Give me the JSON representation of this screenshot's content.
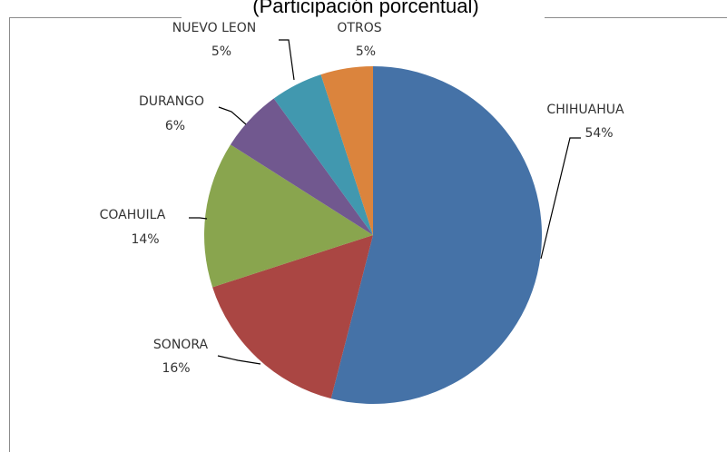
{
  "chart_data": {
    "type": "pie",
    "subtitle": "(Participación porcentual)",
    "categories": [
      "CHIHUAHUA",
      "SONORA",
      "COAHUILA",
      "DURANGO",
      "NUEVO LEON",
      "OTROS"
    ],
    "values": [
      54,
      16,
      14,
      6,
      5,
      5
    ],
    "value_labels": [
      "54%",
      "16%",
      "14%",
      "6%",
      "5%",
      "5%"
    ],
    "colors": [
      "#4572a7",
      "#aa4643",
      "#89a54e",
      "#71588f",
      "#4198af",
      "#db843d"
    ]
  }
}
